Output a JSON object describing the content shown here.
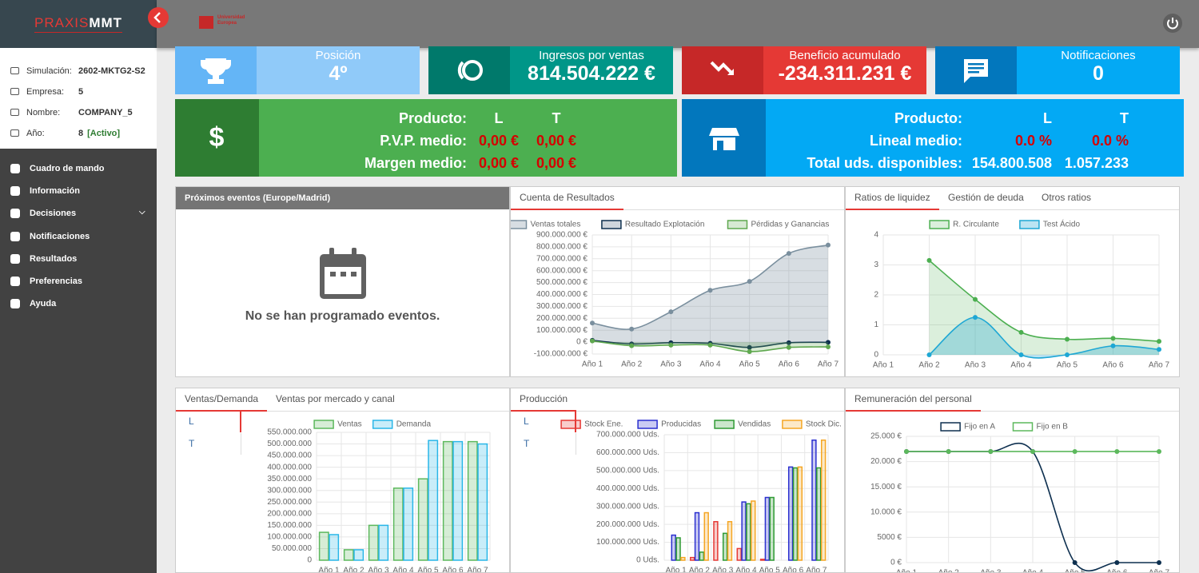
{
  "sidebar": {
    "logo": {
      "first": "PRAXIS",
      "second": "MMT"
    },
    "info": [
      {
        "label": "Simulación:",
        "value": "2602-MKTG2-S2"
      },
      {
        "label": "Empresa:",
        "value": "5"
      },
      {
        "label": "Nombre:",
        "value": "COMPANY_5"
      },
      {
        "label": "Año:",
        "value": "8",
        "status": "[Activo]"
      }
    ],
    "menu": [
      "Cuadro de mando",
      "Información",
      "Decisiones",
      "Notificaciones",
      "Resultados",
      "Preferencias",
      "Ayuda"
    ]
  },
  "header": {
    "university": "Universidad Europea"
  },
  "kpis": [
    {
      "title": "Posición",
      "value": "4º"
    },
    {
      "title": "Ingresos por ventas",
      "value": "814.504.222 €"
    },
    {
      "title": "Beneficio acumulado",
      "value": "-234.311.231 €"
    },
    {
      "title": "Notificaciones",
      "value": "0"
    }
  ],
  "products": [
    {
      "rows": [
        [
          "Producto:",
          "L",
          "T"
        ],
        [
          "P.V.P. medio:",
          "0,00 €",
          "0,00 €"
        ],
        [
          "Margen medio:",
          "0,00 €",
          "0,00 €"
        ]
      ]
    },
    {
      "rows": [
        [
          "Producto:",
          "L",
          "T"
        ],
        [
          "Lineal medio:",
          "0.0 %",
          "0.0 %"
        ],
        [
          "Total uds. disponibles:",
          "154.800.508",
          "1.057.233"
        ]
      ]
    }
  ],
  "events": {
    "title": "Próximos eventos (Europe/Madrid)",
    "empty": "No se han programado eventos."
  },
  "chart_data": [
    {
      "type": "line",
      "tabs": [
        "Cuenta de Resultados"
      ],
      "categories": [
        "Año 1",
        "Año 2",
        "Año 3",
        "Año 4",
        "Año 5",
        "Año 6",
        "Año 7"
      ],
      "ylim": [
        -100000000,
        900000000
      ],
      "yticks": [
        {
          "value": -100000000,
          "label": "-100.000.000 €"
        },
        {
          "value": 0,
          "label": "0 €"
        },
        {
          "value": 100000000,
          "label": "100.000.000 €"
        },
        {
          "value": 200000000,
          "label": "200.000.000 €"
        },
        {
          "value": 300000000,
          "label": "300.000.000 €"
        },
        {
          "value": 400000000,
          "label": "400.000.000 €"
        },
        {
          "value": 500000000,
          "label": "500.000.000 €"
        },
        {
          "value": 600000000,
          "label": "600.000.000 €"
        },
        {
          "value": 700000000,
          "label": "700.000.000 €"
        },
        {
          "value": 800000000,
          "label": "800.000.000 €"
        },
        {
          "value": 900000000,
          "label": "900.000.000 €"
        }
      ],
      "grid": true,
      "series": [
        {
          "name": "Ventas totales",
          "color": "#7a8f9e",
          "fill": "rgba(122,143,158,0.3)",
          "values": [
            160000000,
            110000000,
            255000000,
            435000000,
            510000000,
            745000000,
            815000000
          ]
        },
        {
          "name": "Resultado Explotación",
          "color": "#0d2f4f",
          "fill": "rgba(13,47,79,0.2)",
          "values": [
            15000000,
            -15000000,
            -5000000,
            -10000000,
            -45000000,
            -5000000,
            -2000000
          ]
        },
        {
          "name": "Pérdidas y Ganancias",
          "color": "#5fa84f",
          "fill": "rgba(95,168,79,0.25)",
          "values": [
            10000000,
            -30000000,
            -25000000,
            -25000000,
            -80000000,
            -45000000,
            -40000000
          ]
        }
      ]
    },
    {
      "type": "line",
      "tabs": [
        "Ratios de liquidez",
        "Gestión de deuda",
        "Otros ratios"
      ],
      "categories": [
        "Año 1",
        "Año 2",
        "Año 3",
        "Año 4",
        "Año 5",
        "Año 6",
        "Año 7"
      ],
      "ylim": [
        0,
        4
      ],
      "yticks": [
        0,
        1,
        2,
        3,
        4
      ],
      "grid": true,
      "series": [
        {
          "name": "R. Circulante",
          "color": "#4caf50",
          "fill": "rgba(76,175,80,0.2)",
          "values": [
            null,
            3.15,
            1.85,
            0.75,
            0.52,
            0.55,
            0.45
          ]
        },
        {
          "name": "Test Ácido",
          "color": "#1ea7d4",
          "fill": "rgba(30,167,212,0.3)",
          "values": [
            null,
            0,
            1.25,
            0,
            0,
            0.3,
            0.18
          ]
        }
      ]
    },
    {
      "type": "bar",
      "tabs": [
        "Ventas/Demanda",
        "Ventas por mercado y canal"
      ],
      "side": [
        "L",
        "T"
      ],
      "categories": [
        "Año 1",
        "Año 2",
        "Año 3",
        "Año 4",
        "Año 5",
        "Año 6",
        "Año 7"
      ],
      "ylim": [
        0,
        550000000
      ],
      "yticks": [
        0,
        {
          "value": 50000000,
          "label": "50.000.000"
        },
        {
          "value": 100000000,
          "label": "100.000.000"
        },
        {
          "value": 150000000,
          "label": "150.000.000"
        },
        {
          "value": 200000000,
          "label": "200.000.000"
        },
        {
          "value": 250000000,
          "label": "250.000.000"
        },
        {
          "value": 300000000,
          "label": "300.000.000"
        },
        {
          "value": 350000000,
          "label": "350.000.000"
        },
        {
          "value": 400000000,
          "label": "400.000.000"
        },
        {
          "value": 450000000,
          "label": "450.000.000"
        },
        {
          "value": 500000000,
          "label": "500.000.000"
        },
        {
          "value": 550000000,
          "label": "550.000.000"
        }
      ],
      "grid": true,
      "series": [
        {
          "name": "Ventas",
          "color": "#5cb85c",
          "fill": "rgba(92,184,92,0.25)",
          "values": [
            120000000,
            45000000,
            150000000,
            310000000,
            350000000,
            510000000,
            510000000
          ]
        },
        {
          "name": "Demanda",
          "color": "#29b6e8",
          "fill": "rgba(41,182,232,0.25)",
          "values": [
            110000000,
            45000000,
            150000000,
            310000000,
            515000000,
            510000000,
            500000000
          ]
        }
      ]
    },
    {
      "type": "bar",
      "tabs": [
        "Producción"
      ],
      "side": [
        "L",
        "T"
      ],
      "categories": [
        "Año 1",
        "Año 2",
        "Año 3",
        "Año 4",
        "Año 5",
        "Año 6",
        "Año 7"
      ],
      "ylim": [
        0,
        700000000
      ],
      "yticks": [
        {
          "value": 0,
          "label": "0 Uds."
        },
        {
          "value": 100000000,
          "label": "100.000.000 Uds."
        },
        {
          "value": 200000000,
          "label": "200.000.000 Uds."
        },
        {
          "value": 300000000,
          "label": "300.000.000 Uds."
        },
        {
          "value": 400000000,
          "label": "400.000.000 Uds."
        },
        {
          "value": 500000000,
          "label": "500.000.000 Uds."
        },
        {
          "value": 600000000,
          "label": "600.000.000 Uds."
        },
        {
          "value": 700000000,
          "label": "700.000.000 Uds."
        }
      ],
      "grid": true,
      "series": [
        {
          "name": "Stock Ene.",
          "color": "#e53935",
          "fill": "rgba(229,57,53,0.25)",
          "values": [
            0,
            15000000,
            215000000,
            65000000,
            5000000,
            0,
            0
          ]
        },
        {
          "name": "Producidas",
          "color": "#2a2fcf",
          "fill": "rgba(42,47,207,0.25)",
          "values": [
            140000000,
            265000000,
            0,
            325000000,
            350000000,
            520000000,
            670000000
          ]
        },
        {
          "name": "Vendidas",
          "color": "#2e9a33",
          "fill": "rgba(46,154,51,0.25)",
          "values": [
            125000000,
            45000000,
            150000000,
            315000000,
            350000000,
            515000000,
            515000000
          ]
        },
        {
          "name": "Stock Dic.",
          "color": "#f5a623",
          "fill": "rgba(245,166,35,0.25)",
          "values": [
            15000000,
            265000000,
            215000000,
            330000000,
            0,
            520000000,
            670000000
          ]
        }
      ]
    },
    {
      "type": "line",
      "tabs": [
        "Remuneración del personal"
      ],
      "categories": [
        "Año 1",
        "Año 2",
        "Año 3",
        "Año 4",
        "Año 5",
        "Año 6",
        "Año 7"
      ],
      "ylim": [
        0,
        25000
      ],
      "yticks": [
        {
          "value": 0,
          "label": "0 €"
        },
        {
          "value": 5000,
          "label": "5000 €"
        },
        {
          "value": 10000,
          "label": "10.000 €"
        },
        {
          "value": 15000,
          "label": "15.000 €"
        },
        {
          "value": 20000,
          "label": "20.000 €"
        },
        {
          "value": 25000,
          "label": "25.000 €"
        }
      ],
      "grid": true,
      "series": [
        {
          "name": "Fijo en A",
          "color": "#0d2f4f",
          "values": [
            22000,
            22000,
            22000,
            22000,
            0,
            0,
            0
          ]
        },
        {
          "name": "Fijo en B",
          "color": "#5cb85c",
          "values": [
            22000,
            22000,
            22000,
            22000,
            22000,
            22000,
            22000
          ]
        }
      ]
    }
  ]
}
